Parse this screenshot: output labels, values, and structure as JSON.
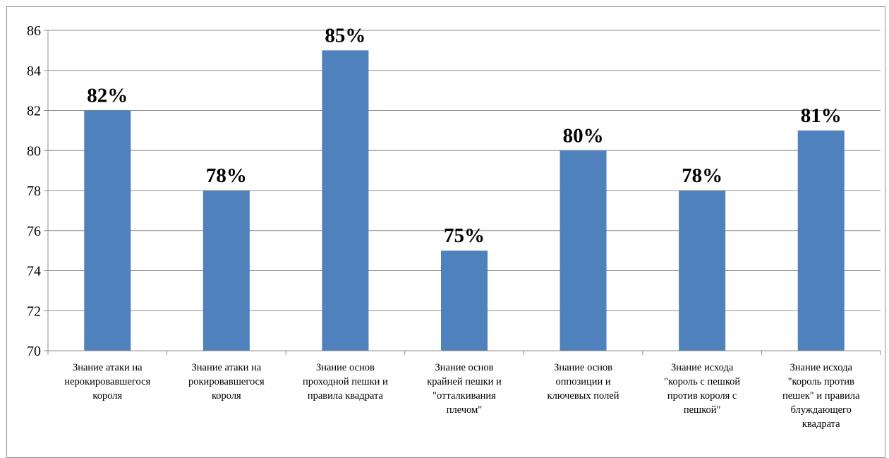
{
  "chart_data": {
    "type": "bar",
    "categories": [
      "Знание атаки на\nнерокировавшегося\nкороля",
      "Знание атаки на\nрокировавшегося\nкороля",
      "Знание основ\nпроходной пешки и\nправила квадрата",
      "Знание основ\nкрайней пешки и\n\"отталкивания\nплечом\"",
      "Знание основ\nоппозиции и\nключевых полей",
      "Знание исхода\n\"король  с пешкой\nпротив короля  с\nпешкой\"",
      "Знание исхода\n\"король  против\nпешек\" и правила\nблуждающего\nквадрата"
    ],
    "values": [
      82,
      78,
      85,
      75,
      80,
      78,
      81
    ],
    "data_labels": [
      "82%",
      "78%",
      "85%",
      "75%",
      "80%",
      "78%",
      "81%"
    ],
    "yticks": [
      "70",
      "72",
      "74",
      "76",
      "78",
      "80",
      "82",
      "84",
      "86"
    ],
    "ylim": [
      70,
      86
    ],
    "grid": true,
    "bar_color": "#4f81bd",
    "title": "",
    "xlabel": "",
    "ylabel": ""
  }
}
